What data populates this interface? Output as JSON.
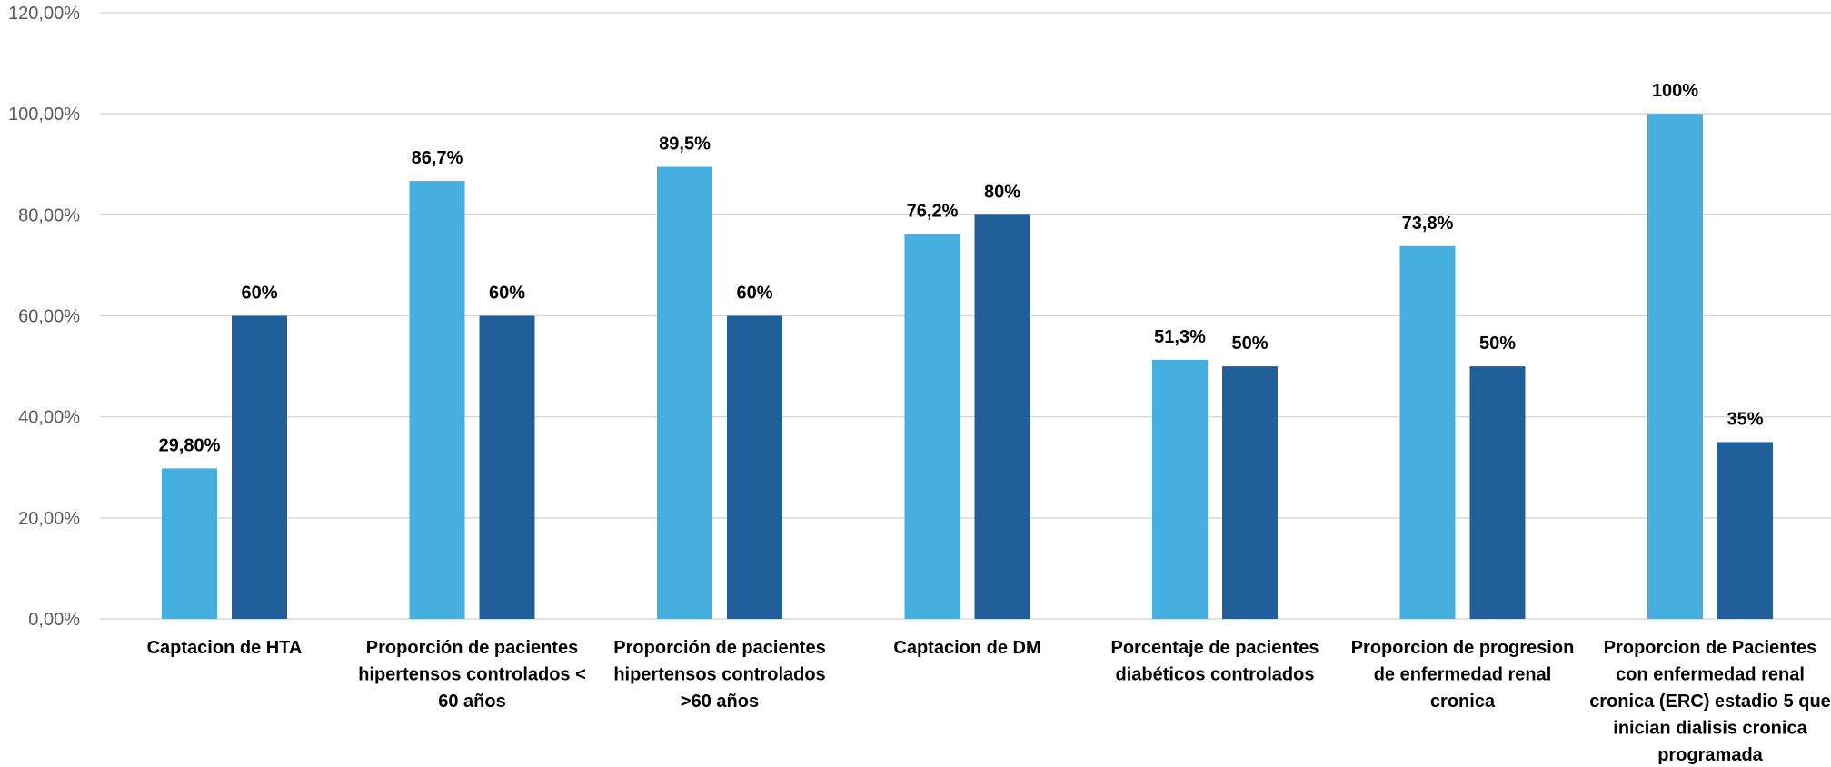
{
  "chart_data": {
    "type": "bar",
    "title": "",
    "xlabel": "",
    "ylabel": "",
    "ylim": [
      0,
      1.2
    ],
    "y_ticks": [
      0,
      0.2,
      0.4,
      0.6,
      0.8,
      1.0,
      1.2
    ],
    "y_tick_labels": [
      "0,00%",
      "20,00%",
      "40,00%",
      "60,00%",
      "80,00%",
      "100,00%",
      "120,00%"
    ],
    "grid": true,
    "legend": "none",
    "categories": [
      [
        "Captacion de HTA"
      ],
      [
        "Proporción de pacientes",
        "hipertensos controlados <",
        "60 años"
      ],
      [
        "Proporción de pacientes",
        "hipertensos controlados",
        ">60 años"
      ],
      [
        "Captacion de DM"
      ],
      [
        "Porcentaje de pacientes",
        "diabéticos controlados"
      ],
      [
        "Proporcion de progresion",
        "de enfermedad renal",
        "cronica"
      ],
      [
        "Proporcion de Pacientes",
        "con enfermedad renal",
        "cronica (ERC) estadio 5 que",
        "inician dialisis cronica",
        "programada"
      ]
    ],
    "series": [
      {
        "color": "#46afe0",
        "values": [
          0.298,
          0.867,
          0.895,
          0.762,
          0.513,
          0.738,
          1.0
        ],
        "labels": [
          "29,80%",
          "86,7%",
          "89,5%",
          "76,2%",
          "51,3%",
          "73,8%",
          "100%"
        ]
      },
      {
        "color": "#215f9a",
        "values": [
          0.6,
          0.6,
          0.6,
          0.8,
          0.5,
          0.5,
          0.35
        ],
        "labels": [
          "60%",
          "60%",
          "60%",
          "80%",
          "50%",
          "50%",
          "35%"
        ]
      }
    ]
  }
}
